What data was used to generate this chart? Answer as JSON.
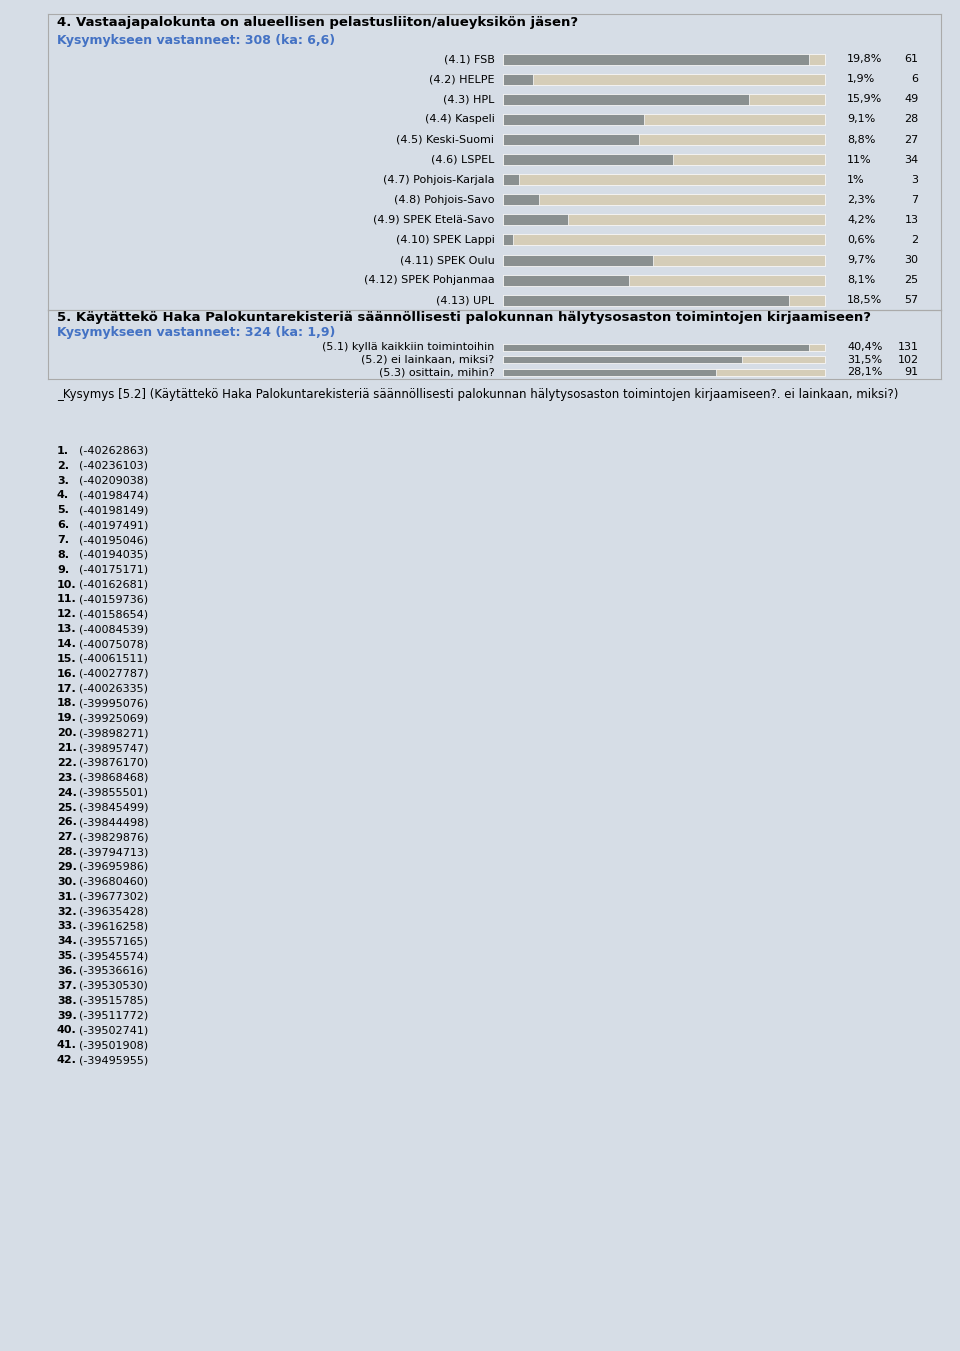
{
  "section4_title": "4. Vastaajapalokunta on alueellisen pelastusliiton/alueyksikön jäsen?",
  "section4_subtitle": "Kysymykseen vastanneet: 308 (ka: 6,6)",
  "section4_labels": [
    "(4.1) FSB",
    "(4.2) HELPE",
    "(4.3) HPL",
    "(4.4) Kaspeli",
    "(4.5) Keski-Suomi",
    "(4.6) LSPEL",
    "(4.7) Pohjois-Karjala",
    "(4.8) Pohjois-Savo",
    "(4.9) SPEK Etelä-Savo",
    "(4.10) SPEK Lappi",
    "(4.11) SPEK Oulu",
    "(4.12) SPEK Pohjanmaa",
    "(4.13) UPL"
  ],
  "section4_pcts": [
    19.8,
    1.9,
    15.9,
    9.1,
    8.8,
    11.0,
    1.0,
    2.3,
    4.2,
    0.6,
    9.7,
    8.1,
    18.5
  ],
  "section4_counts": [
    61,
    6,
    49,
    28,
    27,
    34,
    3,
    7,
    13,
    2,
    30,
    25,
    57
  ],
  "section5_title": "5. Käytättekö Haka Palokuntarekisteriä säännöllisesti palokunnan hälytysosaston toimintojen kirjaamiseen?",
  "section5_subtitle": "Kysymykseen vastanneet: 324 (ka: 1,9)",
  "section5_labels": [
    "(5.1) kyllä kaikkiin toimintoihin",
    "(5.2) ei lainkaan, miksi?",
    "(5.3) osittain, mihin?"
  ],
  "section5_pcts": [
    40.4,
    31.5,
    28.1
  ],
  "section5_counts": [
    131,
    102,
    91
  ],
  "section6_title": "_Kysymys [5.2] (Käytättekö Haka Palokuntarekisteriä säännöllisesti palokunnan hälytysosaston toimintojen kirjaamiseen?. ei lainkaan, miksi?)",
  "section6_items": [
    "1. (-40262863)",
    "2. (-40236103)",
    "3. (-40209038)",
    "4. (-40198474)",
    "5. (-40198149)",
    "6. (-40197491)",
    "7. (-40195046)",
    "8. (-40194035)",
    "9. (-40175171)",
    "10. (-40162681)",
    "11. (-40159736)",
    "12. (-40158654)",
    "13. (-40084539)",
    "14. (-40075078)",
    "15. (-40061511)",
    "16. (-40027787)",
    "17. (-40026335)",
    "18. (-39995076)",
    "19. (-39925069)",
    "20. (-39898271)",
    "21. (-39895747)",
    "22. (-39876170)",
    "23. (-39868468)",
    "24. (-39855501)",
    "25. (-39845499)",
    "26. (-39844498)",
    "27. (-39829876)",
    "28. (-39794713)",
    "29. (-39695986)",
    "30. (-39680460)",
    "31. (-39677302)",
    "32. (-39635428)",
    "33. (-39616258)",
    "34. (-39557165)",
    "35. (-39545574)",
    "36. (-39536616)",
    "37. (-39530530)",
    "38. (-39515785)",
    "39. (-39511772)",
    "40. (-39502741)",
    "41. (-39501908)",
    "42. (-39495955)"
  ],
  "bar_bg_color": "#d5cdb8",
  "bar_fg_color": "#8a9090",
  "bg_color": "#d6dde6",
  "panel_bg_color": "#e8edf2",
  "title_color": "#000000",
  "subtitle_color": "#4472c4",
  "text_color": "#000000",
  "max_pct": 100.0,
  "bar_height": 0.55
}
